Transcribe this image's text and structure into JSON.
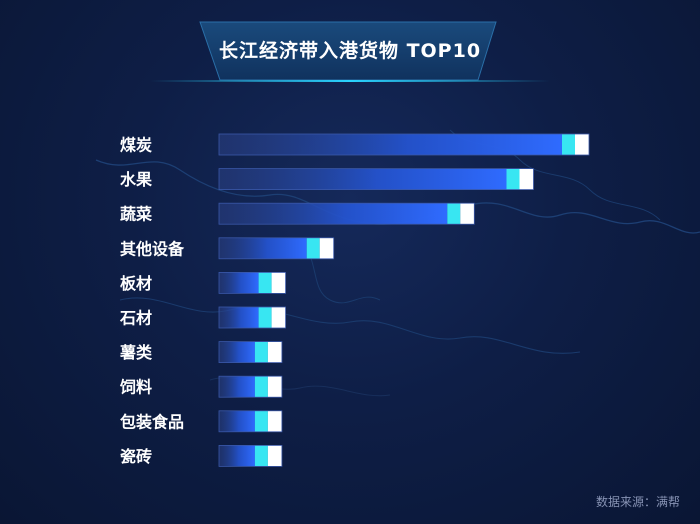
{
  "chart_data": {
    "type": "bar",
    "orientation": "horizontal",
    "title": "长江经济带入港货物 TOP10",
    "categories": [
      "煤炭",
      "水果",
      "蔬菜",
      "其他设备",
      "板材",
      "石材",
      "薯类",
      "饲料",
      "包装食品",
      "瓷砖"
    ],
    "values": [
      100,
      85,
      69,
      31,
      18,
      18,
      17,
      17,
      17,
      17
    ],
    "xlim": [
      0,
      100
    ],
    "grid": false,
    "legend": "none",
    "colors": {
      "track": "#2b3f82",
      "bar_start": "#1d3a9e",
      "bar_end": "#2f6bff",
      "cap_cyan": "#38e6f2",
      "cap_white": "#ffffff"
    }
  },
  "footer": {
    "source": "数据来源：满帮"
  }
}
